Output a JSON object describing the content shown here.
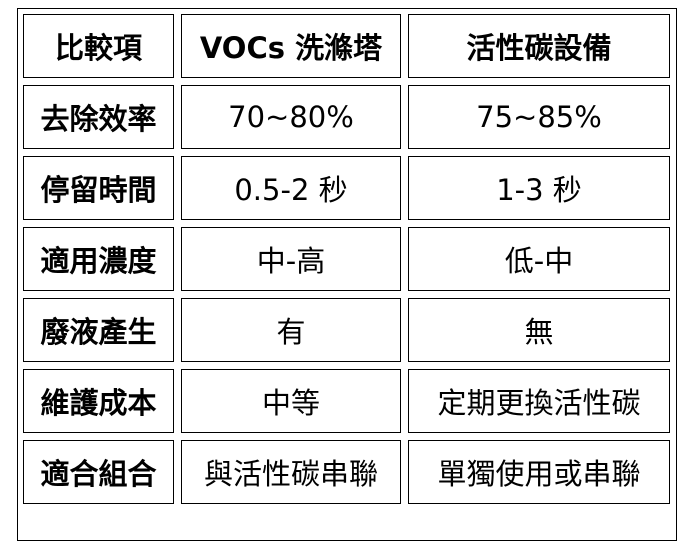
{
  "header": [
    "比較項",
    "VOCs 洗滌塔",
    "活性碳設備"
  ],
  "rows": [
    [
      "去除效率",
      "70~80%",
      "75~85%"
    ],
    [
      "停留時間",
      "0.5-2 秒",
      "1-3 秒"
    ],
    [
      "適用濃度",
      "中-高",
      "低-中"
    ],
    [
      "廢液產生",
      "有",
      "無"
    ],
    [
      "維護成本",
      "中等",
      "定期更換活性碳"
    ],
    [
      "適合組合",
      "與活性碳串聯",
      "單獨使用或串聯"
    ]
  ]
}
